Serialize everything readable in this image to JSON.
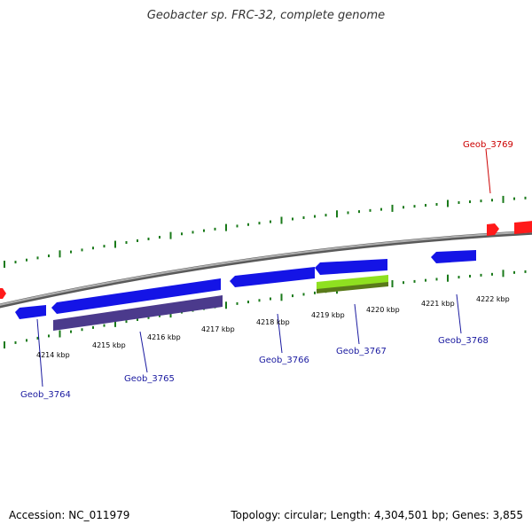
{
  "title": "Geobacter sp. FRC-32, complete genome",
  "footer": {
    "accession": "Accession: NC_011979",
    "summary": "Topology: circular; Length: 4,304,501 bp; Genes: 3,855"
  },
  "colors": {
    "backbone": "#8a8a8a",
    "tick": "#1a7a1a",
    "forward_gene": "#ff0000",
    "reverse_gene": "#1010e0",
    "reverse_gene_dark": "#4b3a8c",
    "highlight": "#8fe020",
    "label_forward": "#cc0000",
    "label_reverse": "#1a1aa0"
  },
  "tick_labels": [
    "4214 kbp",
    "4215 kbp",
    "4216 kbp",
    "4217 kbp",
    "4218 kbp",
    "4219 kbp",
    "4220 kbp",
    "4221 kbp",
    "4222 kbp"
  ],
  "gene_labels": [
    {
      "name": "Geob_3764",
      "strand": "reverse"
    },
    {
      "name": "Geob_3765",
      "strand": "reverse"
    },
    {
      "name": "Geob_3766",
      "strand": "reverse"
    },
    {
      "name": "Geob_3767",
      "strand": "reverse"
    },
    {
      "name": "Geob_3768",
      "strand": "reverse"
    },
    {
      "name": "Geob_3769",
      "strand": "forward"
    }
  ]
}
